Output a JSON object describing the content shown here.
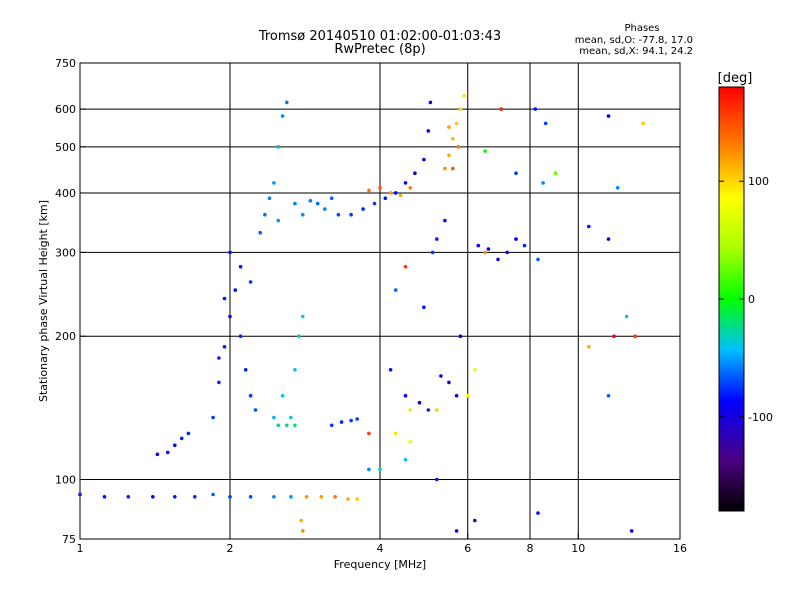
{
  "header": {
    "title_line1": "Tromsø 20140510 01:02:00-01:03:43",
    "title_line2": "RwPretec (8p)",
    "phase_heading": "Phases",
    "phase_o": "mean, sd,O: -77.8, 17.0",
    "phase_x": "mean, sd,X:  94.1, 24.2"
  },
  "chart_data": {
    "type": "scatter",
    "xlabel": "Frequency [MHz]",
    "ylabel": "Stationary phase Virtual Height [km]",
    "x_scale": "log",
    "y_scale": "log",
    "xlim": [
      1,
      16
    ],
    "ylim": [
      75,
      750
    ],
    "x_ticks": [
      1,
      2,
      4,
      6,
      8,
      10,
      16
    ],
    "x_tick_labels": [
      "1",
      "2",
      "4",
      "6",
      "8",
      "10",
      "16"
    ],
    "y_ticks": [
      75,
      100,
      200,
      300,
      400,
      500,
      600,
      750
    ],
    "y_tick_labels": [
      "75",
      "100",
      "200",
      "300",
      "400",
      "500",
      "600",
      "750"
    ],
    "x_grid": [
      2,
      4,
      6,
      8,
      10
    ],
    "y_grid": [
      100,
      200,
      300,
      400,
      500,
      600
    ],
    "colorbar": {
      "unit": "[deg]",
      "range": [
        -180,
        180
      ],
      "ticks": [
        100,
        0,
        -100
      ],
      "tick_labels": [
        "100",
        "0",
        "-100"
      ]
    },
    "series": [
      {
        "points": [
          [
            1.0,
            93,
            -90
          ],
          [
            1.12,
            92,
            -92
          ],
          [
            1.25,
            92,
            -88
          ],
          [
            1.4,
            92,
            -95
          ],
          [
            1.55,
            92,
            -90
          ],
          [
            1.7,
            92,
            -85
          ],
          [
            1.85,
            93,
            -70
          ],
          [
            2.0,
            92,
            -80
          ],
          [
            2.2,
            92,
            -75
          ],
          [
            2.45,
            92,
            -60
          ],
          [
            2.65,
            92,
            -55
          ]
        ]
      },
      {
        "points": [
          [
            2.85,
            92,
            130
          ],
          [
            3.05,
            92,
            125
          ],
          [
            3.25,
            92,
            140
          ],
          [
            3.45,
            91,
            120
          ],
          [
            3.6,
            91,
            110
          ],
          [
            2.78,
            82,
            120
          ],
          [
            2.8,
            78,
            130
          ]
        ]
      },
      {
        "points": [
          [
            1.43,
            113,
            -95
          ],
          [
            1.5,
            114,
            -90
          ],
          [
            1.55,
            118,
            -92
          ],
          [
            1.6,
            122,
            -88
          ],
          [
            1.65,
            125,
            -85
          ]
        ]
      },
      {
        "points": [
          [
            1.85,
            135,
            -80
          ],
          [
            1.9,
            160,
            -85
          ],
          [
            1.95,
            190,
            -90
          ],
          [
            2.0,
            220,
            -95
          ],
          [
            2.05,
            250,
            -90
          ],
          [
            2.1,
            200,
            -85
          ],
          [
            2.15,
            170,
            -88
          ],
          [
            2.2,
            150,
            -80
          ],
          [
            2.25,
            140,
            -75
          ],
          [
            2.0,
            300,
            -95
          ],
          [
            1.95,
            240,
            -92
          ],
          [
            1.9,
            180,
            -86
          ],
          [
            2.1,
            280,
            -90
          ],
          [
            2.2,
            260,
            -82
          ]
        ]
      },
      {
        "points": [
          [
            2.3,
            330,
            -70
          ],
          [
            2.35,
            360,
            -65
          ],
          [
            2.4,
            390,
            -60
          ],
          [
            2.45,
            420,
            -55
          ],
          [
            2.5,
            500,
            -50
          ],
          [
            2.55,
            580,
            -60
          ],
          [
            2.6,
            620,
            -65
          ],
          [
            2.5,
            350,
            -55
          ],
          [
            2.7,
            380,
            -62
          ],
          [
            2.8,
            360,
            -58
          ],
          [
            2.9,
            385,
            -65
          ],
          [
            3.0,
            380,
            -68
          ],
          [
            3.1,
            370,
            -60
          ],
          [
            3.2,
            390,
            -70
          ]
        ]
      },
      {
        "points": [
          [
            2.45,
            135,
            -50
          ],
          [
            2.55,
            150,
            -45
          ],
          [
            2.65,
            135,
            -40
          ],
          [
            2.7,
            170,
            -42
          ],
          [
            2.75,
            200,
            -38
          ],
          [
            2.8,
            220,
            -35
          ],
          [
            2.5,
            130,
            -30
          ],
          [
            2.6,
            130,
            -25
          ],
          [
            2.7,
            130,
            -20
          ]
        ]
      },
      {
        "points": [
          [
            3.2,
            130,
            -80
          ],
          [
            3.35,
            132,
            -85
          ],
          [
            3.5,
            133,
            -80
          ],
          [
            3.6,
            134,
            -78
          ]
        ]
      },
      {
        "points": [
          [
            3.3,
            360,
            -75
          ],
          [
            3.5,
            360,
            -80
          ],
          [
            3.7,
            370,
            -85
          ],
          [
            3.9,
            380,
            -80
          ],
          [
            4.1,
            390,
            -90
          ],
          [
            4.3,
            400,
            -95
          ],
          [
            4.5,
            420,
            -100
          ],
          [
            4.7,
            440,
            -110
          ],
          [
            4.9,
            470,
            -120
          ],
          [
            5.0,
            540,
            -110
          ],
          [
            5.05,
            620,
            -100
          ],
          [
            3.8,
            405,
            140
          ],
          [
            4.0,
            410,
            150
          ],
          [
            4.2,
            400,
            130
          ],
          [
            4.4,
            395,
            120
          ],
          [
            4.6,
            410,
            135
          ]
        ]
      },
      {
        "points": [
          [
            5.4,
            450,
            130
          ],
          [
            5.5,
            480,
            120
          ],
          [
            5.6,
            520,
            115
          ],
          [
            5.7,
            560,
            110
          ],
          [
            5.8,
            600,
            105
          ],
          [
            5.9,
            640,
            100
          ],
          [
            5.6,
            450,
            150
          ],
          [
            5.75,
            500,
            140
          ],
          [
            5.5,
            550,
            125
          ]
        ]
      },
      {
        "points": [
          [
            4.2,
            170,
            -90
          ],
          [
            4.5,
            150,
            -95
          ],
          [
            4.8,
            145,
            -100
          ],
          [
            5.0,
            140,
            -88
          ],
          [
            5.3,
            165,
            -105
          ],
          [
            5.5,
            160,
            -110
          ],
          [
            5.7,
            150,
            -115
          ],
          [
            4.6,
            140,
            100
          ],
          [
            5.2,
            140,
            110
          ],
          [
            6.0,
            150,
            90
          ],
          [
            6.2,
            170,
            80
          ]
        ]
      },
      {
        "points": [
          [
            6.3,
            310,
            -95
          ],
          [
            6.6,
            305,
            -100
          ],
          [
            6.9,
            290,
            -105
          ],
          [
            7.2,
            300,
            -110
          ],
          [
            7.5,
            320,
            -95
          ],
          [
            7.8,
            310,
            -85
          ],
          [
            6.5,
            300,
            130
          ]
        ]
      },
      {
        "points": [
          [
            6.5,
            490,
            0
          ],
          [
            7.0,
            600,
            170
          ],
          [
            7.5,
            440,
            -80
          ],
          [
            8.2,
            600,
            -90
          ],
          [
            8.5,
            420,
            -60
          ],
          [
            8.6,
            560,
            -80
          ],
          [
            9.0,
            440,
            30
          ],
          [
            8.3,
            290,
            -70
          ],
          [
            10.5,
            340,
            -90
          ],
          [
            11.5,
            320,
            -100
          ],
          [
            12.0,
            410,
            -60
          ],
          [
            12.5,
            220,
            -40
          ],
          [
            11.5,
            580,
            -95
          ],
          [
            11.8,
            200,
            180
          ],
          [
            10.5,
            190,
            120
          ],
          [
            11.5,
            150,
            -70
          ],
          [
            13.0,
            200,
            160
          ],
          [
            13.5,
            560,
            110
          ],
          [
            12.8,
            78,
            -95
          ],
          [
            8.3,
            85,
            -90
          ],
          [
            5.7,
            78,
            -100
          ],
          [
            6.2,
            82,
            -120
          ],
          [
            3.8,
            125,
            160
          ],
          [
            3.8,
            105,
            -60
          ],
          [
            4.0,
            105,
            -30
          ],
          [
            4.5,
            110,
            -40
          ],
          [
            4.6,
            120,
            80
          ],
          [
            4.3,
            125,
            100
          ],
          [
            5.2,
            100,
            -90
          ],
          [
            5.8,
            200,
            -95
          ],
          [
            4.5,
            280,
            160
          ],
          [
            4.3,
            250,
            -70
          ],
          [
            4.9,
            230,
            -95
          ],
          [
            5.1,
            300,
            -80
          ],
          [
            5.2,
            320,
            -85
          ],
          [
            5.4,
            350,
            -90
          ]
        ]
      }
    ]
  }
}
